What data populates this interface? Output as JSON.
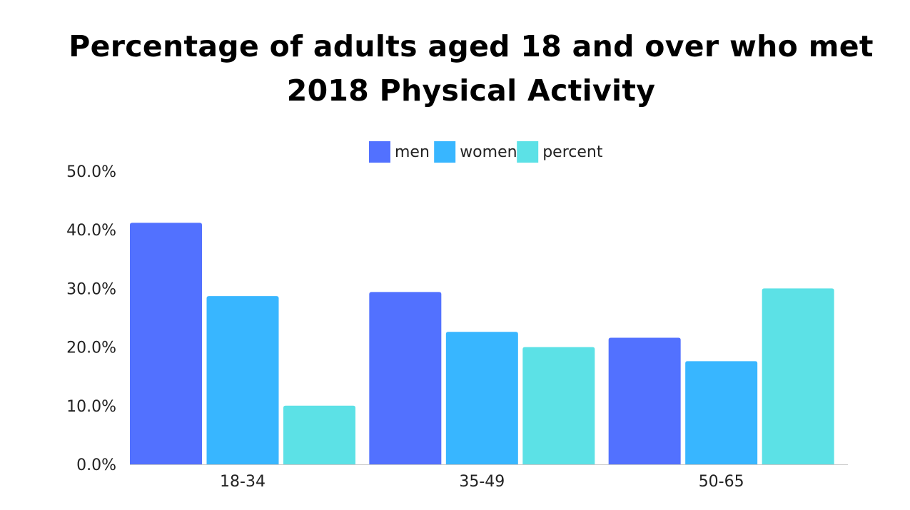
{
  "chart_data": {
    "type": "bar",
    "title": "Percentage of adults aged 18 and over who met 2018 Physical Activity",
    "xlabel": "",
    "ylabel": "",
    "categories": [
      "18-34",
      "35-49",
      "50-65"
    ],
    "series": [
      {
        "name": "men",
        "color": "#5271ff",
        "values": [
          41.2,
          29.4,
          21.6
        ]
      },
      {
        "name": "women",
        "color": "#38b6ff",
        "values": [
          28.7,
          22.6,
          17.6
        ]
      },
      {
        "name": "percent",
        "color": "#5ce1e6",
        "values": [
          10.0,
          20.0,
          30.0
        ]
      }
    ],
    "yticks": [
      "0.0%",
      "10.0%",
      "20.0%",
      "30.0%",
      "40.0%",
      "50.0%"
    ],
    "ylim": [
      0,
      50
    ],
    "grid": false,
    "legend_position": "top-center"
  }
}
